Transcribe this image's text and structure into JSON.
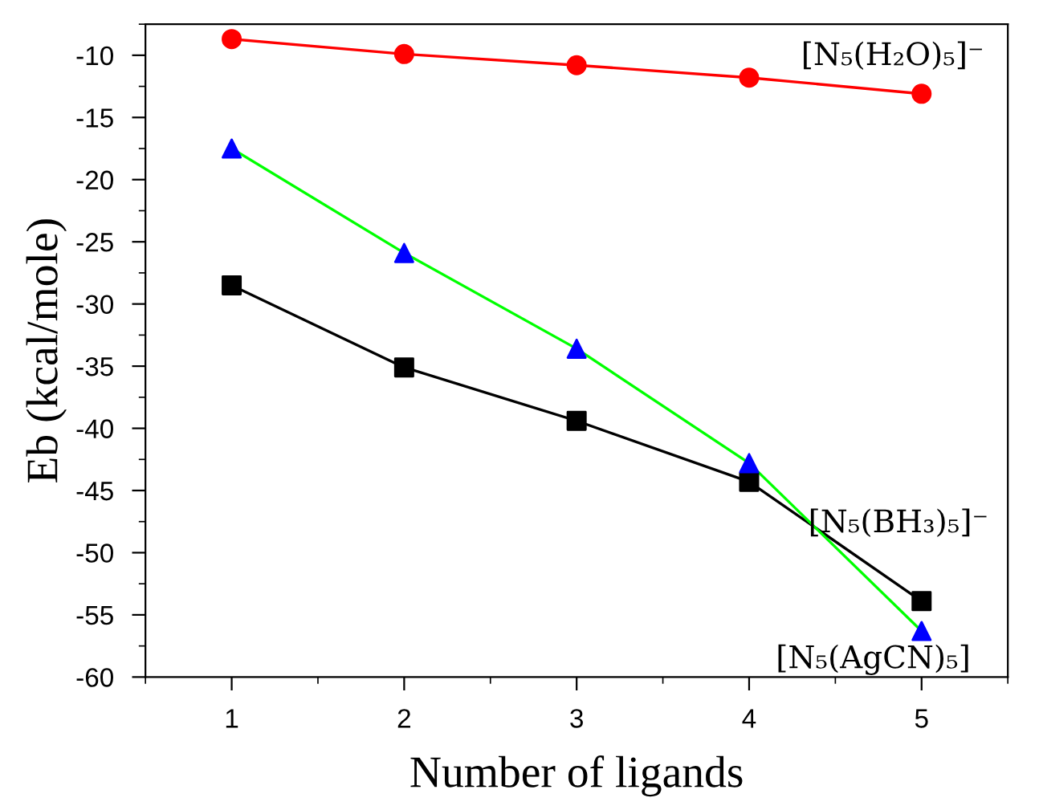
{
  "chart_data": {
    "type": "line",
    "xlabel": "Number of ligands",
    "ylabel": "Eb (kcal/mole)",
    "x": [
      1,
      2,
      3,
      4,
      5
    ],
    "series": [
      {
        "name": "[N₅(H₂O)₅]⁻",
        "color": "#ff0000",
        "marker": "circle",
        "values": [
          -8.7,
          -9.9,
          -10.8,
          -11.8,
          -13.1
        ]
      },
      {
        "name": "[N₅(BH₃)₅]⁻",
        "color": "#000000",
        "marker": "square",
        "values": [
          -28.5,
          -35.1,
          -39.4,
          -44.3,
          -53.9
        ]
      },
      {
        "name": "[N₅(AgCN)₅]",
        "color": "#00ff00",
        "colors": [
          "#0000ff",
          "#0000ff",
          "#0000ff",
          "#0000ff",
          "#0000ff"
        ],
        "marker": "triangle",
        "values": [
          -17.5,
          -25.9,
          -33.6,
          -42.8,
          -56.3
        ]
      }
    ],
    "xlim": [
      0.5,
      5.5
    ],
    "xticks": [
      1,
      2,
      3,
      4,
      5
    ],
    "ylim": [
      -60,
      -7.5
    ],
    "yticks": [
      -60,
      -55,
      -50,
      -45,
      -40,
      -35,
      -30,
      -25,
      -20,
      -15,
      -10
    ],
    "grid": false,
    "legend": false
  }
}
